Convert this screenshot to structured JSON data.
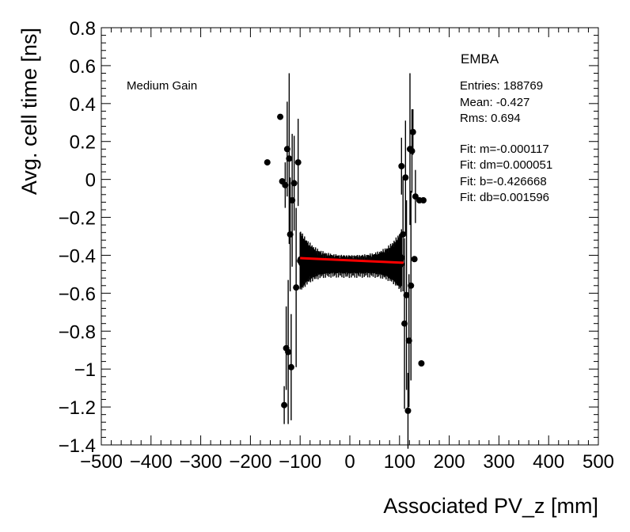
{
  "chart_data": {
    "type": "scatter",
    "title": "",
    "xlabel": "Associated PV_z [mm]",
    "ylabel": "Avg. cell time [ns]",
    "xlim": [
      -500,
      500
    ],
    "ylim": [
      -1.4,
      0.8
    ],
    "x_ticks": [
      "−500",
      "−400",
      "−300",
      "−200",
      "−100",
      "0",
      "100",
      "200",
      "300",
      "400",
      "500"
    ],
    "y_ticks": [
      "0.8",
      "0.6",
      "0.4",
      "0.2",
      "0",
      "−0.2",
      "−0.4",
      "−0.6",
      "−0.8",
      "−1",
      "−1.2",
      "−1.4"
    ],
    "annotation": "Medium Gain",
    "stats": {
      "name": "EMBA",
      "entries": "Entries: 188769",
      "mean": "Mean: -0.427",
      "rms": "Rms: 0.694",
      "fit_m": "Fit: m=-0.000117",
      "fit_dm": "Fit: dm=0.000051",
      "fit_b": "Fit: b=-0.426668",
      "fit_db": "Fit: db=0.001596"
    },
    "fit": {
      "m": -0.000117,
      "b": -0.426668,
      "x_range": [
        -100,
        108
      ],
      "color": "#ff0000"
    },
    "outer_points": [
      {
        "x": -166,
        "y": 0.09,
        "e": 0
      },
      {
        "x": -140,
        "y": 0.33,
        "e": 0
      },
      {
        "x": -136,
        "y": -0.01,
        "e": 0
      },
      {
        "x": -132,
        "y": -1.19,
        "e": 0.1
      },
      {
        "x": -130,
        "y": -0.03,
        "e": 0.12
      },
      {
        "x": -128,
        "y": -0.89,
        "e": 0.22
      },
      {
        "x": -126,
        "y": 0.16,
        "e": 0.25
      },
      {
        "x": -124,
        "y": -0.91,
        "e": 0.38
      },
      {
        "x": -122,
        "y": 0.11,
        "e": 0.45
      },
      {
        "x": -120,
        "y": -0.29,
        "e": 0.3
      },
      {
        "x": -118,
        "y": -0.99,
        "e": 0.28
      },
      {
        "x": -116,
        "y": -0.11,
        "e": 0.35
      },
      {
        "x": -112,
        "y": -0.02,
        "e": 0.25
      },
      {
        "x": -108,
        "y": -0.57,
        "e": 0.42
      },
      {
        "x": -104,
        "y": 0.09,
        "e": 0.23
      },
      {
        "x": 104,
        "y": 0.07,
        "e": 0.15
      },
      {
        "x": 107,
        "y": -0.29,
        "e": 0.3
      },
      {
        "x": 110,
        "y": -0.76,
        "e": 0.45
      },
      {
        "x": 112,
        "y": 0.01,
        "e": 0.3
      },
      {
        "x": 114,
        "y": -0.61,
        "e": 0.5
      },
      {
        "x": 117,
        "y": -1.22,
        "e": 0.2
      },
      {
        "x": 119,
        "y": -0.85,
        "e": 0.35
      },
      {
        "x": 121,
        "y": 0.16,
        "e": 0.4
      },
      {
        "x": 123,
        "y": -0.56,
        "e": 0.5
      },
      {
        "x": 125,
        "y": 0.15,
        "e": 0.22
      },
      {
        "x": 127,
        "y": 0.25,
        "e": 0.12
      },
      {
        "x": 130,
        "y": -0.42,
        "e": 0
      },
      {
        "x": 132,
        "y": -0.09,
        "e": 0.14
      },
      {
        "x": 140,
        "y": -0.11,
        "e": 0
      },
      {
        "x": 144,
        "y": -0.97,
        "e": 0
      },
      {
        "x": 148,
        "y": -0.11,
        "e": 0
      }
    ],
    "band": {
      "x_range": [
        -100,
        104
      ],
      "center": -0.43,
      "sag": 0.025,
      "err_center": 0.045,
      "err_edge": 0.15
    }
  }
}
